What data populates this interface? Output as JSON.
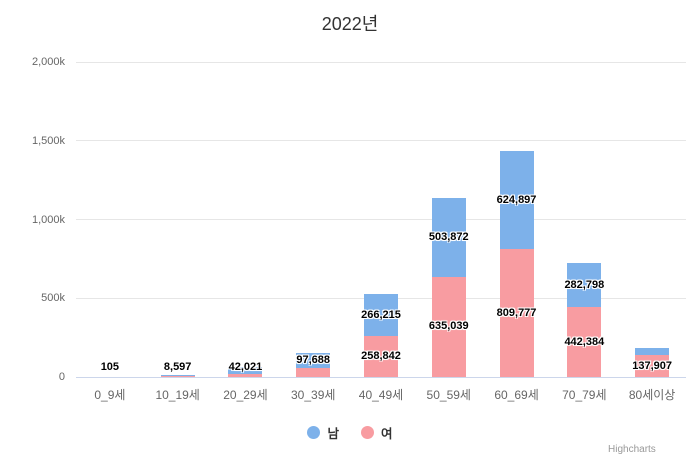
{
  "title": "2022년",
  "credits_label": "Highcharts",
  "legend": {
    "items": [
      {
        "label": "남",
        "color": "#7DB1EA"
      },
      {
        "label": "여",
        "color": "#F89CA1"
      }
    ]
  },
  "colors": {
    "male_bar": "#7DB1EA",
    "female_bar": "#F89CA1",
    "grid_line": "#E6E6E6",
    "axis_line": "#CCD6EB",
    "axis_text": "#666666",
    "title_text": "#333333",
    "data_label_text": "#000000",
    "credits_text": "#999999"
  },
  "chart_data": {
    "type": "bar",
    "stacked": true,
    "title": "2022년",
    "xlabel": "",
    "ylabel": "",
    "ylim": [
      0,
      2000000
    ],
    "grid": true,
    "legend_position": "bottom",
    "categories": [
      "0_9세",
      "10_19세",
      "20_29세",
      "30_39세",
      "40_49세",
      "50_59세",
      "60_69세",
      "70_79세",
      "80세이상"
    ],
    "yticks": [
      {
        "value": 0,
        "label": "0"
      },
      {
        "value": 500000,
        "label": "500k"
      },
      {
        "value": 1000000,
        "label": "1,000k"
      },
      {
        "value": 1500000,
        "label": "1,500k"
      },
      {
        "value": 2000000,
        "label": "2,000k"
      }
    ],
    "series": [
      {
        "name": "남",
        "color": "#7DB1EA",
        "values": [
          105,
          8597,
          42021,
          97688,
          266215,
          503872,
          624897,
          282798,
          48000
        ],
        "data_labels": [
          "105",
          "8,597",
          "42,021",
          "97,688",
          "266,215",
          "503,872",
          "624,897",
          "282,798",
          ""
        ],
        "estimated_indices": [
          8
        ]
      },
      {
        "name": "여",
        "color": "#F89CA1",
        "values": [
          100,
          6000,
          20000,
          56000,
          258842,
          635039,
          809777,
          442384,
          137907
        ],
        "data_labels": [
          "",
          "",
          "",
          "",
          "258,842",
          "635,039",
          "809,777",
          "442,384",
          "137,907"
        ],
        "estimated_indices": [
          0,
          1,
          2,
          3
        ]
      }
    ]
  }
}
